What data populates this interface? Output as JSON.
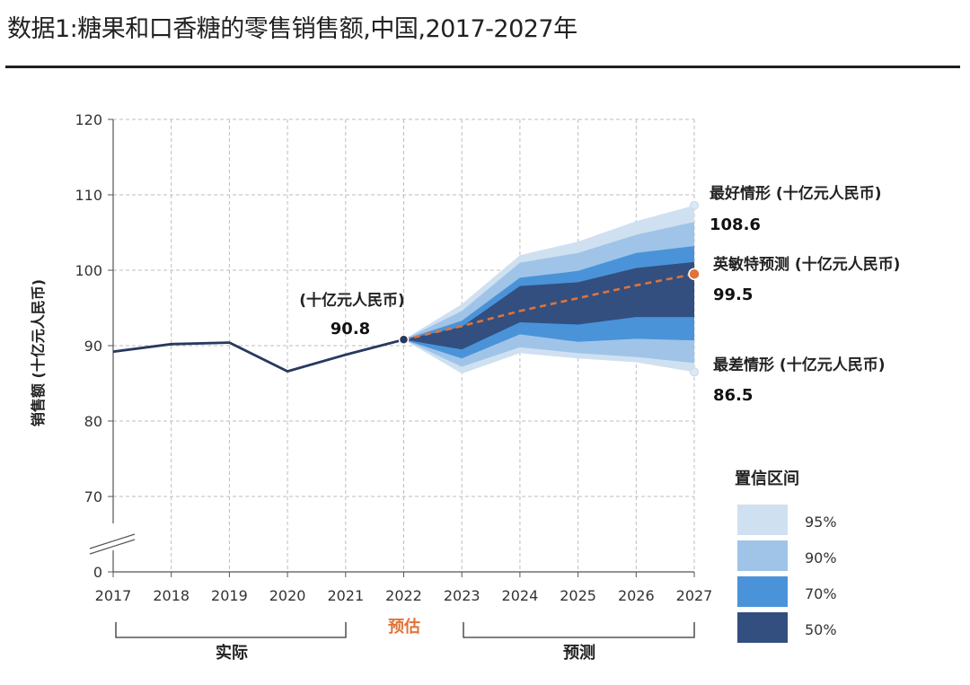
{
  "page": {
    "title": "数据1:糖果和口香糖的零售销售额,中国,2017-2027年"
  },
  "chart_data": {
    "type": "line",
    "ylabel": "销售额 (十亿元人民币)",
    "ylim": [
      0,
      120
    ],
    "y_ticks": [
      "0",
      "70",
      "80",
      "90",
      "100",
      "110",
      "120"
    ],
    "y_axis_break": "0 to 65 omitted",
    "grid": true,
    "categories": [
      "2017",
      "2018",
      "2019",
      "2020",
      "2021",
      "2022",
      "2023",
      "2024",
      "2025",
      "2026",
      "2027"
    ],
    "actual": {
      "x": [
        "2017",
        "2018",
        "2019",
        "2020",
        "2021",
        "2022"
      ],
      "values": [
        89.2,
        90.2,
        90.4,
        86.6,
        88.8,
        90.8
      ]
    },
    "forecast": {
      "x": [
        "2022",
        "2023",
        "2024",
        "2025",
        "2026",
        "2027"
      ],
      "values": [
        90.8,
        92.6,
        94.6,
        96.3,
        98.0,
        99.5
      ],
      "color": "#e0733a"
    },
    "confidence_bands": [
      {
        "level": "95%",
        "color": "#cfe0f1",
        "upper": [
          90.8,
          95.5,
          102.0,
          103.8,
          106.5,
          108.6
        ],
        "lower": [
          90.8,
          86.3,
          89.0,
          88.3,
          87.8,
          86.5
        ]
      },
      {
        "level": "90%",
        "color": "#9fc4e8",
        "upper": [
          90.8,
          94.6,
          101.0,
          102.3,
          104.7,
          106.4
        ],
        "lower": [
          90.8,
          87.2,
          89.8,
          89.0,
          88.5,
          87.7
        ]
      },
      {
        "level": "70%",
        "color": "#4a93d9",
        "upper": [
          90.8,
          93.3,
          99.0,
          99.9,
          102.3,
          103.2
        ],
        "lower": [
          90.8,
          88.3,
          91.5,
          90.5,
          90.9,
          90.7
        ]
      },
      {
        "level": "50%",
        "color": "#324f7f",
        "upper": [
          90.8,
          92.5,
          97.9,
          98.4,
          100.3,
          101.1
        ],
        "lower": [
          90.8,
          89.5,
          93.1,
          92.8,
          93.8,
          93.8
        ]
      }
    ],
    "line_color": "#27395e",
    "annotations": {
      "current": {
        "label": "(十亿元人民币)",
        "value": "90.8"
      },
      "best": {
        "label": "最好情形 (十亿元人民币)",
        "value": "108.6",
        "y": 108.6
      },
      "forecast": {
        "label": "英敏特预测 (十亿元人民币)",
        "value": "99.5",
        "y": 99.5
      },
      "worst": {
        "label": "最差情形 (十亿元人民币)",
        "value": "86.5",
        "y": 86.5
      }
    },
    "legend": {
      "title": "置信区间",
      "items": [
        {
          "label": "95%",
          "color": "#cfe0f1"
        },
        {
          "label": "90%",
          "color": "#9fc4e8"
        },
        {
          "label": "70%",
          "color": "#4a93d9"
        },
        {
          "label": "50%",
          "color": "#324f7f"
        }
      ]
    },
    "periods": {
      "actual": "实际",
      "estimate": "预估",
      "forecast": "预测"
    }
  }
}
